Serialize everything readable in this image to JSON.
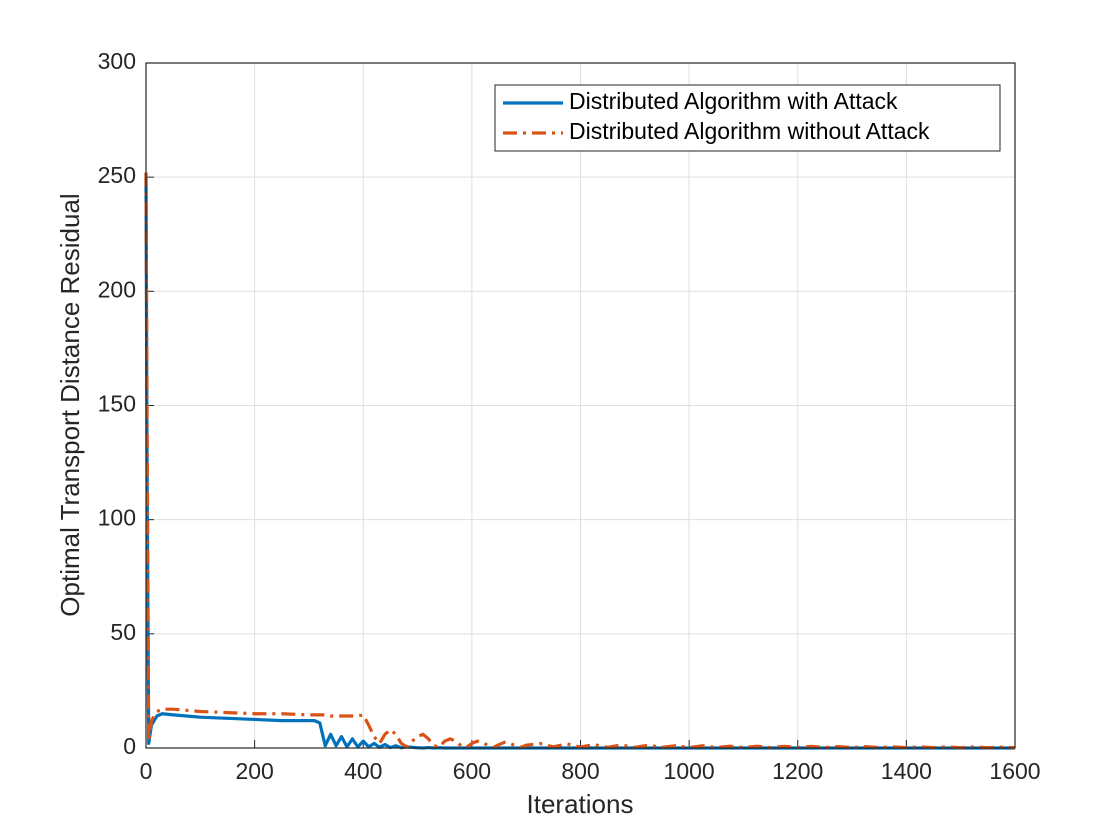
{
  "chart_data": {
    "type": "line",
    "xlabel": "Iterations",
    "ylabel": "Optimal Transport Distance Residual",
    "x": [
      0,
      2,
      5,
      10,
      20,
      30,
      50,
      100,
      150,
      200,
      250,
      300,
      310,
      320,
      330,
      340,
      350,
      360,
      370,
      380,
      390,
      400,
      410,
      420,
      430,
      440,
      450,
      460,
      470,
      480,
      490,
      500,
      510,
      520,
      530,
      540,
      550,
      560,
      570,
      580,
      590,
      600,
      610,
      620,
      630,
      640,
      650,
      660,
      670,
      680,
      690,
      700,
      725,
      750,
      775,
      800,
      825,
      850,
      875,
      900,
      925,
      950,
      975,
      1000,
      1025,
      1050,
      1075,
      1100,
      1125,
      1150,
      1175,
      1200,
      1225,
      1250,
      1275,
      1300,
      1325,
      1350,
      1375,
      1400,
      1425,
      1450,
      1475,
      1500,
      1525,
      1550,
      1575,
      1600
    ],
    "series": [
      {
        "name": "Distributed Algorithm with Attack",
        "color": "#0072bd",
        "style": "solid",
        "values": [
          250,
          120,
          2,
          10,
          14,
          15,
          14.5,
          13.5,
          13,
          12.5,
          12,
          12,
          12,
          11,
          1,
          6,
          1,
          5,
          0.5,
          4,
          0.5,
          3,
          0.5,
          2,
          0.3,
          1.5,
          0.2,
          1,
          0.1,
          0.5,
          0.3,
          0.1,
          0,
          0.2,
          0,
          0.1,
          0,
          0,
          0,
          0,
          0,
          0,
          0,
          0,
          0,
          0,
          0,
          0,
          0,
          0,
          0,
          0,
          0,
          0,
          0,
          0,
          0,
          0,
          0,
          0,
          0,
          0,
          0,
          0,
          0,
          0,
          0,
          0,
          0,
          0,
          0,
          0,
          0,
          0,
          0,
          0,
          0,
          0,
          0,
          0,
          0,
          0,
          0,
          0,
          0,
          0,
          0,
          0
        ]
      },
      {
        "name": "Distributed Algorithm without Attack",
        "color": "#d95319",
        "style": "dashdot",
        "values": [
          252,
          150,
          3,
          12,
          16,
          17,
          17,
          16,
          15.5,
          15,
          15,
          14.5,
          14.5,
          14.5,
          14.5,
          14,
          14,
          14,
          14,
          14,
          14,
          14.5,
          10,
          5,
          2,
          6,
          8,
          6,
          2,
          0.5,
          3,
          5,
          6,
          4,
          1,
          0.5,
          3,
          4,
          3,
          1,
          0.3,
          2,
          3,
          2.5,
          1,
          0.3,
          1.5,
          2.5,
          2,
          1,
          0.3,
          1.2,
          2,
          0.5,
          1.8,
          0.4,
          1.5,
          0.3,
          1.3,
          0.3,
          1.2,
          0.3,
          1,
          0.2,
          1,
          0.2,
          0.8,
          0.2,
          0.8,
          0.2,
          0.7,
          0.2,
          0.7,
          0.2,
          0.6,
          0.2,
          0.6,
          0.2,
          0.5,
          0.2,
          0.5,
          0.2,
          0.5,
          0.1,
          0.5,
          0.1,
          0.4,
          0.1
        ]
      }
    ],
    "xlim": [
      0,
      1600
    ],
    "xticks": [
      0,
      200,
      400,
      600,
      800,
      1000,
      1200,
      1400,
      1600
    ],
    "ylim": [
      0,
      300
    ],
    "yticks": [
      0,
      50,
      100,
      150,
      200,
      250,
      300
    ],
    "grid": true,
    "legend": "top-right"
  }
}
